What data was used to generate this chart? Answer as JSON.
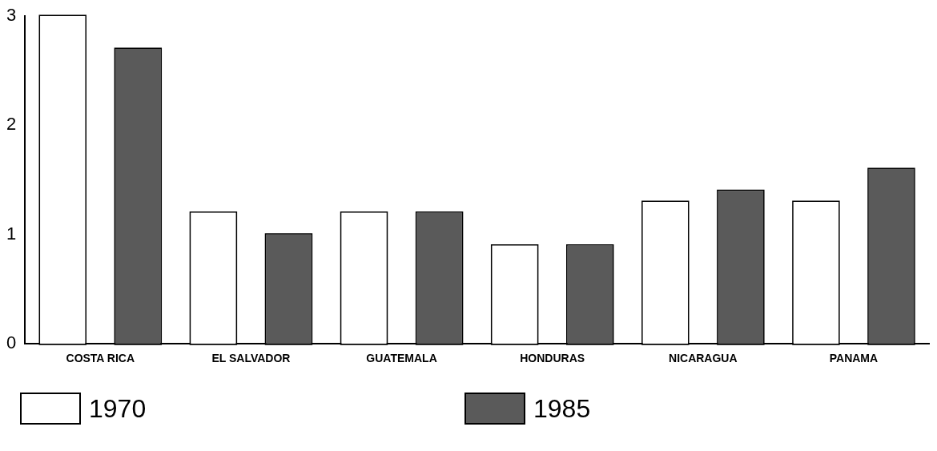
{
  "chart_data": {
    "type": "bar",
    "categories": [
      "COSTA RICA",
      "EL SALVADOR",
      "GUATEMALA",
      "HONDURAS",
      "NICARAGUA",
      "PANAMA"
    ],
    "series": [
      {
        "name": "1970",
        "color": "#ffffff",
        "values": [
          3.0,
          1.2,
          1.2,
          0.9,
          1.3,
          1.3
        ]
      },
      {
        "name": "1985",
        "color": "#5a5a5a",
        "values": [
          2.7,
          1.0,
          1.2,
          0.9,
          1.4,
          1.6
        ]
      }
    ],
    "ylim": [
      0,
      3
    ],
    "yticks": [
      0,
      1,
      2,
      3
    ],
    "grid": false,
    "legend": "bottom"
  }
}
